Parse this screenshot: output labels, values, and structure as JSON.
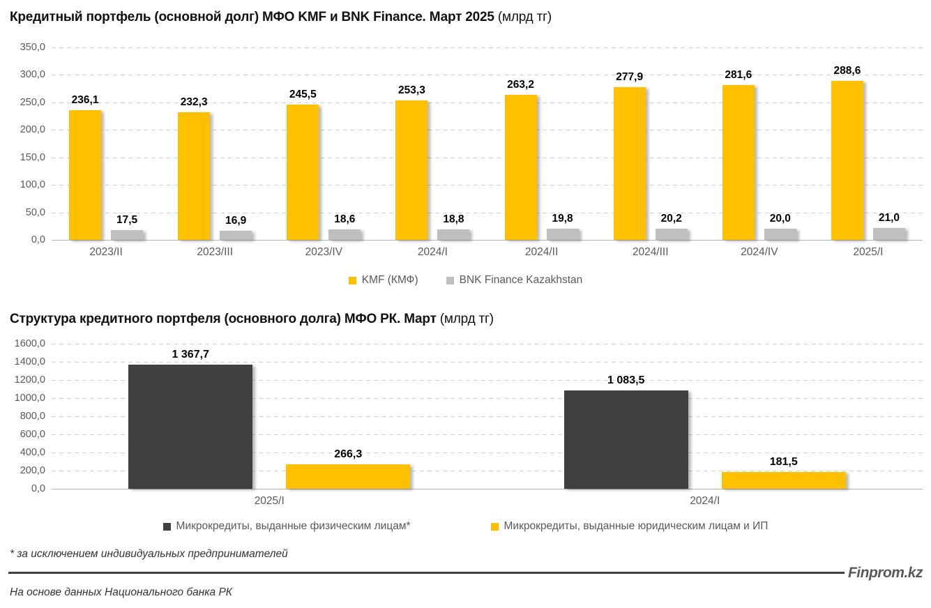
{
  "chart1": {
    "title_bold": "Кредитный портфель (основной долг) МФО KMF и BNK Finance. Март 2025",
    "title_unit": " (млрд тг)"
  },
  "chart2": {
    "title_bold": "Структура кредитного портфеля (основного долга) МФО РК. Март",
    "title_unit": " (млрд тг)"
  },
  "chart_data": [
    {
      "type": "bar",
      "title": "Кредитный портфель (основной долг) МФО KMF и BNK Finance. Март 2025 (млрд тг)",
      "categories": [
        "2023/II",
        "2023/III",
        "2023/IV",
        "2024/I",
        "2024/II",
        "2024/III",
        "2024/IV",
        "2025/I"
      ],
      "series": [
        {
          "name": "KMF (КМФ)",
          "color": "#FFC000",
          "values": [
            236.1,
            232.3,
            245.5,
            253.3,
            263.2,
            277.9,
            281.6,
            288.6
          ],
          "labels": [
            "236,1",
            "232,3",
            "245,5",
            "253,3",
            "263,2",
            "277,9",
            "281,6",
            "288,6"
          ]
        },
        {
          "name": "BNK Finance Kazakhstan",
          "color": "#BFBFBF",
          "values": [
            17.5,
            16.9,
            18.6,
            18.8,
            19.8,
            20.2,
            20.0,
            21.0
          ],
          "labels": [
            "17,5",
            "16,9",
            "18,6",
            "18,8",
            "19,8",
            "20,2",
            "20,0",
            "21,0"
          ]
        }
      ],
      "ylim": [
        0,
        350
      ],
      "yticks": [
        "350,0",
        "300,0",
        "250,0",
        "200,0",
        "150,0",
        "100,0",
        "50,0",
        "0,0"
      ],
      "grid": true,
      "legend_position": "bottom"
    },
    {
      "type": "bar",
      "title": "Структура кредитного портфеля (основного долга) МФО РК. Март (млрд тг)",
      "categories": [
        "2025/I",
        "2024/I"
      ],
      "series": [
        {
          "name": "Микрокредиты, выданные физическим лицам*",
          "color": "#404040",
          "values": [
            1367.7,
            1083.5
          ],
          "labels": [
            "1 367,7",
            "1 083,5"
          ]
        },
        {
          "name": "Микрокредиты, выданные юридическим лицам и ИП",
          "color": "#FFC000",
          "values": [
            266.3,
            181.5
          ],
          "labels": [
            "266,3",
            "181,5"
          ]
        }
      ],
      "ylim": [
        0,
        1600
      ],
      "yticks": [
        "1600,0",
        "1400,0",
        "1200,0",
        "1000,0",
        "800,0",
        "600,0",
        "400,0",
        "200,0",
        "0,0"
      ],
      "grid": true,
      "legend_position": "bottom"
    }
  ],
  "footer": {
    "footnote": "* за исключением индивидуальных предпринимателей",
    "source": "На основе данных Национального банка РК",
    "brand": "Finprom.kz"
  }
}
